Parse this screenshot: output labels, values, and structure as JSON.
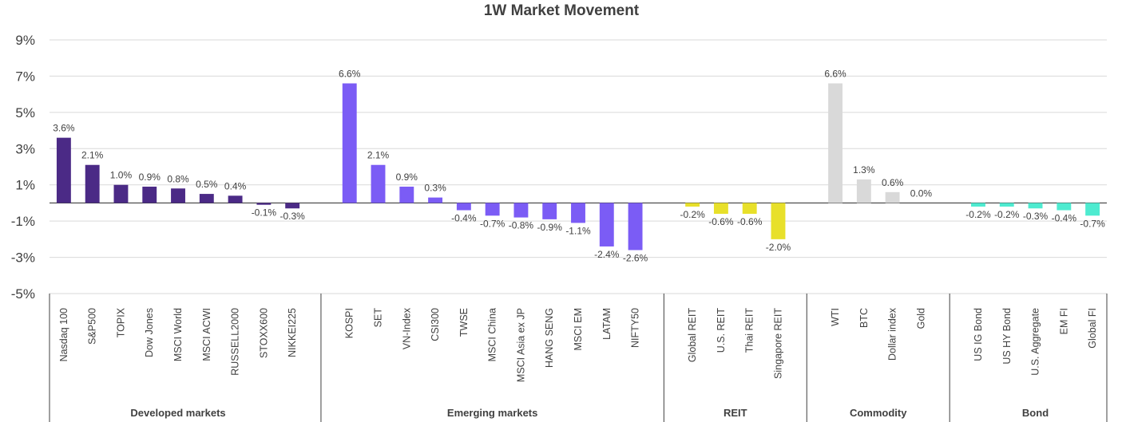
{
  "chart_data": {
    "type": "bar",
    "title": "1W Market Movement",
    "ylim": [
      -5,
      9
    ],
    "yticks": [
      9,
      7,
      5,
      3,
      1,
      -1,
      -3,
      -5
    ],
    "ytick_labels": [
      "9%",
      "7%",
      "5%",
      "3%",
      "1%",
      "-1%",
      "-3%",
      "-5%"
    ],
    "grid": true,
    "groups": [
      {
        "name": "Developed  markets",
        "color": "#4B2A86",
        "categories": [
          "Nasdaq 100",
          "S&P500",
          "TOPIX",
          "Dow Jones",
          "MSCI World",
          "MSCI ACWI",
          "RUSSELL2000",
          "STOXX600",
          "NIKKEI225"
        ],
        "values": [
          3.6,
          2.1,
          1.0,
          0.9,
          0.8,
          0.5,
          0.4,
          -0.1,
          -0.3
        ],
        "labels": [
          "3.6%",
          "2.1%",
          "1.0%",
          "0.9%",
          "0.8%",
          "0.5%",
          "0.4%",
          "-0.1%",
          "-0.3%"
        ]
      },
      {
        "name": "Emerging markets",
        "color": "#7B5CF5",
        "categories": [
          "KOSPI",
          "SET",
          "VN-Index",
          "CSI300",
          "TWSE",
          "MSCI China",
          "MSCI Asia ex JP",
          "HANG SENG",
          "MSCI EM",
          "LATAM",
          "NIFTY50"
        ],
        "values": [
          6.6,
          2.1,
          0.9,
          0.3,
          -0.4,
          -0.7,
          -0.8,
          -0.9,
          -1.1,
          -2.4,
          -2.6
        ],
        "labels": [
          "6.6%",
          "2.1%",
          "0.9%",
          "0.3%",
          "-0.4%",
          "-0.7%",
          "-0.8%",
          "-0.9%",
          "-1.1%",
          "-2.4%",
          "-2.6%"
        ]
      },
      {
        "name": "REIT",
        "color": "#E8E02A",
        "categories": [
          "Global REIT",
          "U.S. REIT",
          "Thai REIT",
          "Singapore REIT"
        ],
        "values": [
          -0.2,
          -0.6,
          -0.6,
          -2.0
        ],
        "labels": [
          "-0.2%",
          "-0.6%",
          "-0.6%",
          "-2.0%"
        ]
      },
      {
        "name": "Commodity",
        "color": "#D9D9D9",
        "categories": [
          "WTI",
          "BTC",
          "Dollar index",
          "Gold"
        ],
        "values": [
          6.6,
          1.3,
          0.6,
          0.0
        ],
        "labels": [
          "6.6%",
          "1.3%",
          "0.6%",
          "0.0%"
        ]
      },
      {
        "name": "Bond",
        "color": "#4EEBD0",
        "categories": [
          "US IG Bond",
          "US HY Bond",
          "U.S. Aggregate",
          "EM FI",
          "Global FI"
        ],
        "values": [
          -0.2,
          -0.2,
          -0.3,
          -0.4,
          -0.7
        ],
        "labels": [
          "-0.2%",
          "-0.2%",
          "-0.3%",
          "-0.4%",
          "-0.7%"
        ]
      }
    ]
  }
}
